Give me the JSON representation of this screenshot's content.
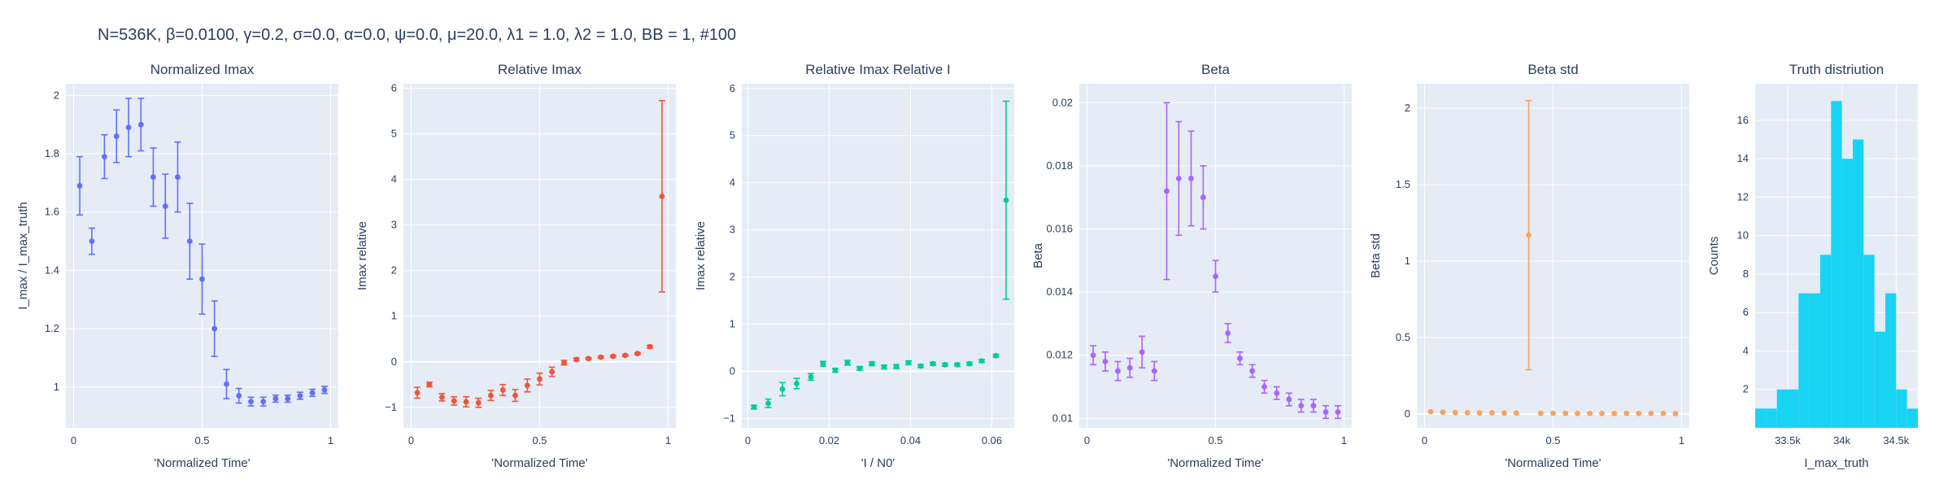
{
  "figure": {
    "title": "N=536K, β=0.0100, γ=0.2, σ=0.0,  α=0.0, ψ=0.0, μ=20.0, λ1 = 1.0, λ2 = 1.0, BB = 1, #100"
  },
  "chart_data": [
    {
      "type": "scatter",
      "title": "Normalized Imax",
      "xlabel": "'Normalized Time'",
      "ylabel": "I_max / I_max_truth",
      "color": "#636efa",
      "xlim": [
        -0.03,
        1.03
      ],
      "ylim": [
        0.86,
        2.04
      ],
      "xticks": [
        {
          "v": 0,
          "t": "0"
        },
        {
          "v": 0.5,
          "t": "0.5"
        },
        {
          "v": 1,
          "t": "1"
        }
      ],
      "yticks": [
        {
          "v": 1,
          "t": "1"
        },
        {
          "v": 1.2,
          "t": "1.2"
        },
        {
          "v": 1.4,
          "t": "1.4"
        },
        {
          "v": 1.6,
          "t": "1.6"
        },
        {
          "v": 1.8,
          "t": "1.8"
        },
        {
          "v": 2,
          "t": "2"
        }
      ],
      "series": [
        {
          "x": [
            0.024,
            0.071,
            0.12,
            0.167,
            0.214,
            0.262,
            0.31,
            0.357,
            0.405,
            0.452,
            0.5,
            0.548,
            0.595,
            0.643,
            0.69,
            0.738,
            0.786,
            0.833,
            0.881,
            0.929,
            0.976
          ],
          "y": [
            1.69,
            1.5,
            1.79,
            1.86,
            1.89,
            1.9,
            1.72,
            1.62,
            1.72,
            1.5,
            1.37,
            1.2,
            1.01,
            0.97,
            0.95,
            0.95,
            0.96,
            0.96,
            0.97,
            0.98,
            0.99
          ],
          "err": [
            0.1,
            0.045,
            0.075,
            0.09,
            0.1,
            0.09,
            0.1,
            0.11,
            0.12,
            0.13,
            0.12,
            0.095,
            0.05,
            0.025,
            0.015,
            0.015,
            0.012,
            0.012,
            0.012,
            0.012,
            0.012
          ]
        }
      ]
    },
    {
      "type": "scatter",
      "title": "Relative Imax",
      "xlabel": "'Normalized Time'",
      "ylabel": "Imax relative",
      "color": "#ef553b",
      "xlim": [
        -0.03,
        1.03
      ],
      "ylim": [
        -1.45,
        6.1
      ],
      "xticks": [
        {
          "v": 0,
          "t": "0"
        },
        {
          "v": 0.5,
          "t": "0.5"
        },
        {
          "v": 1,
          "t": "1"
        }
      ],
      "yticks": [
        {
          "v": -1,
          "t": "−1"
        },
        {
          "v": 0,
          "t": "0"
        },
        {
          "v": 1,
          "t": "1"
        },
        {
          "v": 2,
          "t": "2"
        },
        {
          "v": 3,
          "t": "3"
        },
        {
          "v": 4,
          "t": "4"
        },
        {
          "v": 5,
          "t": "5"
        },
        {
          "v": 6,
          "t": "6"
        }
      ],
      "series": [
        {
          "x": [
            0.024,
            0.071,
            0.12,
            0.167,
            0.214,
            0.262,
            0.31,
            0.357,
            0.405,
            0.452,
            0.5,
            0.548,
            0.595,
            0.643,
            0.69,
            0.738,
            0.786,
            0.833,
            0.881,
            0.929,
            0.976
          ],
          "y": [
            -0.68,
            -0.5,
            -0.78,
            -0.86,
            -0.88,
            -0.9,
            -0.74,
            -0.62,
            -0.74,
            -0.52,
            -0.38,
            -0.22,
            -0.02,
            0.05,
            0.07,
            0.1,
            0.12,
            0.14,
            0.18,
            0.33,
            3.63
          ],
          "err": [
            0.12,
            0.05,
            0.08,
            0.09,
            0.11,
            0.1,
            0.11,
            0.12,
            0.13,
            0.14,
            0.13,
            0.1,
            0.05,
            0.03,
            0.02,
            0.02,
            0.02,
            0.02,
            0.02,
            0.03,
            2.1
          ]
        }
      ]
    },
    {
      "type": "scatter",
      "title": "Relative Imax Relative I",
      "xlabel": "'I / N0'",
      "ylabel": "Imax relative",
      "color": "#00cc96",
      "xlim": [
        -0.0015,
        0.0655
      ],
      "ylim": [
        -1.2,
        6.1
      ],
      "xticks": [
        {
          "v": 0,
          "t": "0"
        },
        {
          "v": 0.02,
          "t": "0.02"
        },
        {
          "v": 0.04,
          "t": "0.04"
        },
        {
          "v": 0.06,
          "t": "0.06"
        }
      ],
      "yticks": [
        {
          "v": -1,
          "t": "−1"
        },
        {
          "v": 0,
          "t": "0"
        },
        {
          "v": 1,
          "t": "1"
        },
        {
          "v": 2,
          "t": "2"
        },
        {
          "v": 3,
          "t": "3"
        },
        {
          "v": 4,
          "t": "4"
        },
        {
          "v": 5,
          "t": "5"
        },
        {
          "v": 6,
          "t": "6"
        }
      ],
      "series": [
        {
          "x": [
            0.0015,
            0.005,
            0.0085,
            0.012,
            0.0155,
            0.0185,
            0.0215,
            0.0245,
            0.0275,
            0.0305,
            0.0335,
            0.0365,
            0.0395,
            0.0425,
            0.0455,
            0.0485,
            0.0515,
            0.0545,
            0.0575,
            0.061,
            0.0635
          ],
          "y": [
            -0.76,
            -0.68,
            -0.38,
            -0.26,
            -0.12,
            0.16,
            0.02,
            0.18,
            0.06,
            0.16,
            0.09,
            0.1,
            0.18,
            0.11,
            0.16,
            0.14,
            0.14,
            0.16,
            0.22,
            0.33,
            3.63
          ],
          "err": [
            0.04,
            0.09,
            0.14,
            0.11,
            0.07,
            0.05,
            0.04,
            0.05,
            0.04,
            0.04,
            0.04,
            0.04,
            0.04,
            0.03,
            0.03,
            0.03,
            0.03,
            0.03,
            0.03,
            0.03,
            2.1
          ]
        }
      ]
    },
    {
      "type": "scatter",
      "title": "Beta",
      "xlabel": "'Normalized Time'",
      "ylabel": "Beta",
      "color": "#ab63fa",
      "xlim": [
        -0.03,
        1.03
      ],
      "ylim": [
        0.0097,
        0.0206
      ],
      "xticks": [
        {
          "v": 0,
          "t": "0"
        },
        {
          "v": 0.5,
          "t": "0.5"
        },
        {
          "v": 1,
          "t": "1"
        }
      ],
      "yticks": [
        {
          "v": 0.01,
          "t": "0.01"
        },
        {
          "v": 0.012,
          "t": "0.012"
        },
        {
          "v": 0.014,
          "t": "0.014"
        },
        {
          "v": 0.016,
          "t": "0.016"
        },
        {
          "v": 0.018,
          "t": "0.018"
        },
        {
          "v": 0.02,
          "t": "0.02"
        }
      ],
      "series": [
        {
          "x": [
            0.024,
            0.071,
            0.12,
            0.167,
            0.214,
            0.262,
            0.31,
            0.357,
            0.405,
            0.452,
            0.5,
            0.548,
            0.595,
            0.643,
            0.69,
            0.738,
            0.786,
            0.833,
            0.881,
            0.929,
            0.976
          ],
          "y": [
            0.012,
            0.0118,
            0.0115,
            0.0116,
            0.0121,
            0.0115,
            0.0172,
            0.0176,
            0.0176,
            0.017,
            0.0145,
            0.0127,
            0.0119,
            0.0115,
            0.011,
            0.0108,
            0.0106,
            0.0104,
            0.0104,
            0.0102,
            0.0102
          ],
          "err": [
            0.0003,
            0.0003,
            0.0003,
            0.0003,
            0.0005,
            0.0003,
            0.0028,
            0.0018,
            0.0015,
            0.001,
            0.0005,
            0.0003,
            0.0002,
            0.0002,
            0.0002,
            0.0002,
            0.0002,
            0.0002,
            0.0002,
            0.0002,
            0.0002
          ]
        }
      ]
    },
    {
      "type": "scatter",
      "title": "Beta std",
      "xlabel": "'Normalized Time'",
      "ylabel": "Beta std",
      "color": "#ffa15a",
      "xlim": [
        -0.03,
        1.03
      ],
      "ylim": [
        -0.09,
        2.16
      ],
      "xticks": [
        {
          "v": 0,
          "t": "0"
        },
        {
          "v": 0.5,
          "t": "0.5"
        },
        {
          "v": 1,
          "t": "1"
        }
      ],
      "yticks": [
        {
          "v": 0,
          "t": "0"
        },
        {
          "v": 0.5,
          "t": "0.5"
        },
        {
          "v": 1,
          "t": "1"
        },
        {
          "v": 1.5,
          "t": "1.5"
        },
        {
          "v": 2,
          "t": "2"
        }
      ],
      "series": [
        {
          "x": [
            0.024,
            0.071,
            0.12,
            0.167,
            0.214,
            0.262,
            0.31,
            0.357,
            0.405,
            0.452,
            0.5,
            0.548,
            0.595,
            0.643,
            0.69,
            0.738,
            0.786,
            0.833,
            0.881,
            0.929,
            0.976
          ],
          "y": [
            0.015,
            0.012,
            0.01,
            0.009,
            0.008,
            0.008,
            0.007,
            0.006,
            1.17,
            0.005,
            0.005,
            0.005,
            0.004,
            0.004,
            0.004,
            0.004,
            0.004,
            0.004,
            0.004,
            0.004,
            0.003
          ],
          "err": [
            0,
            0,
            0,
            0,
            0,
            0,
            0,
            0,
            0.88,
            0,
            0,
            0,
            0,
            0,
            0,
            0,
            0,
            0,
            0,
            0,
            0
          ]
        }
      ]
    },
    {
      "type": "bar",
      "title": "Truth distriution",
      "xlabel": "I_max_truth",
      "ylabel": "Counts",
      "color": "#19d3f3",
      "xlim": [
        33200,
        34700
      ],
      "ylim": [
        0,
        17.9
      ],
      "xticks": [
        {
          "v": 33500,
          "t": "33.5k"
        },
        {
          "v": 34000,
          "t": "34k"
        },
        {
          "v": 34500,
          "t": "34.5k"
        }
      ],
      "yticks": [
        {
          "v": 2,
          "t": "2"
        },
        {
          "v": 4,
          "t": "4"
        },
        {
          "v": 6,
          "t": "6"
        },
        {
          "v": 8,
          "t": "8"
        },
        {
          "v": 10,
          "t": "10"
        },
        {
          "v": 12,
          "t": "12"
        },
        {
          "v": 14,
          "t": "14"
        },
        {
          "v": 16,
          "t": "16"
        }
      ],
      "bin_width": 100,
      "bins": [
        33200,
        33300,
        33400,
        33500,
        33600,
        33700,
        33800,
        33900,
        34000,
        34100,
        34200,
        34300,
        34400,
        34500,
        34600
      ],
      "counts": [
        1,
        1,
        2,
        2,
        7,
        7,
        9,
        17,
        14,
        15,
        9,
        5,
        7,
        2,
        1
      ]
    }
  ]
}
